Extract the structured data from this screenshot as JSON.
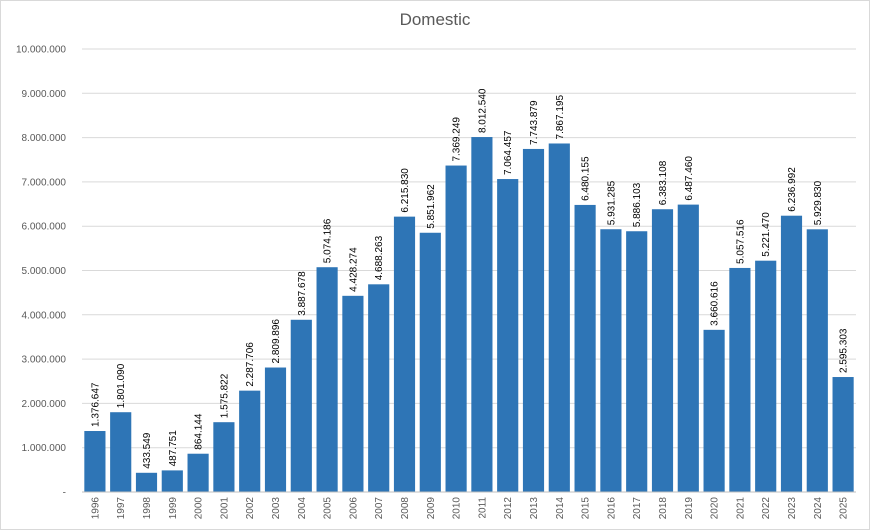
{
  "chart_data": {
    "type": "bar",
    "title": "Domestic",
    "xlabel": "",
    "ylabel": "",
    "ylim": [
      0,
      10000000
    ],
    "y_ticks": [
      0,
      1000000,
      2000000,
      3000000,
      4000000,
      5000000,
      6000000,
      7000000,
      8000000,
      9000000,
      10000000
    ],
    "y_tick_labels": [
      "-",
      "1.000.000",
      "2.000.000",
      "3.000.000",
      "4.000.000",
      "5.000.000",
      "6.000.000",
      "7.000.000",
      "8.000.000",
      "9.000.000",
      "10.000.000"
    ],
    "grid": "horizontal",
    "bar_color": "#2e75b6",
    "categories": [
      "1996",
      "1997",
      "1998",
      "1999",
      "2000",
      "2001",
      "2002",
      "2003",
      "2004",
      "2005",
      "2006",
      "2007",
      "2008",
      "2009",
      "2010",
      "2011",
      "2012",
      "2013",
      "2014",
      "2015",
      "2016",
      "2017",
      "2018",
      "2019",
      "2020",
      "2021",
      "2022",
      "2023",
      "2024",
      "2025"
    ],
    "values": [
      1376647,
      1801090,
      433549,
      487751,
      864144,
      1575822,
      2287706,
      2809896,
      3887678,
      5074186,
      4428274,
      4688263,
      6215830,
      5851962,
      7369249,
      8012540,
      7064457,
      7743879,
      7867195,
      6480155,
      5931285,
      5886103,
      6383108,
      6487460,
      3660616,
      5057516,
      5221470,
      6236992,
      5929830,
      2595303
    ],
    "data_labels": [
      "1.376.647",
      "1.801.090",
      "433.549",
      "487.751",
      "864.144",
      "1.575.822",
      "2.287.706",
      "2.809.896",
      "3.887.678",
      "5.074.186",
      "4.428.274",
      "4.688.263",
      "6.215.830",
      "5.851.962",
      "7.369.249",
      "8.012.540",
      "7.064.457",
      "7.743.879",
      "7.867.195",
      "6.480.155",
      "5.931.285",
      "5.886.103",
      "6.383.108",
      "6.487.460",
      "3.660.616",
      "5.057.516",
      "5.221.470",
      "6.236.992",
      "5.929.830",
      "2.595.303"
    ]
  }
}
